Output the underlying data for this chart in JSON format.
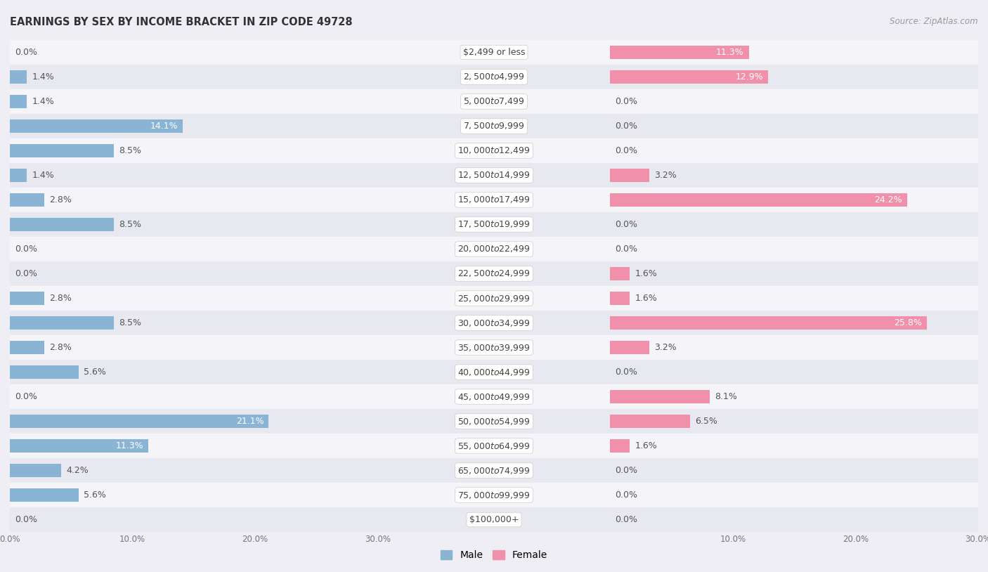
{
  "title": "EARNINGS BY SEX BY INCOME BRACKET IN ZIP CODE 49728",
  "source": "Source: ZipAtlas.com",
  "categories": [
    "$2,499 or less",
    "$2,500 to $4,999",
    "$5,000 to $7,499",
    "$7,500 to $9,999",
    "$10,000 to $12,499",
    "$12,500 to $14,999",
    "$15,000 to $17,499",
    "$17,500 to $19,999",
    "$20,000 to $22,499",
    "$22,500 to $24,999",
    "$25,000 to $29,999",
    "$30,000 to $34,999",
    "$35,000 to $39,999",
    "$40,000 to $44,999",
    "$45,000 to $49,999",
    "$50,000 to $54,999",
    "$55,000 to $64,999",
    "$65,000 to $74,999",
    "$75,000 to $99,999",
    "$100,000+"
  ],
  "male": [
    0.0,
    1.4,
    1.4,
    14.1,
    8.5,
    1.4,
    2.8,
    8.5,
    0.0,
    0.0,
    2.8,
    8.5,
    2.8,
    5.6,
    0.0,
    21.1,
    11.3,
    4.2,
    5.6,
    0.0
  ],
  "female": [
    11.3,
    12.9,
    0.0,
    0.0,
    0.0,
    3.2,
    24.2,
    0.0,
    0.0,
    1.6,
    1.6,
    25.8,
    3.2,
    0.0,
    8.1,
    6.5,
    1.6,
    0.0,
    0.0,
    0.0
  ],
  "male_color": "#8ab4d4",
  "female_color": "#f090aa",
  "male_highlight_color": "#5b9ec9",
  "female_highlight_color": "#e8607a",
  "bg_color": "#eeeef4",
  "row_color_odd": "#f5f5f9",
  "row_color_even": "#e8e8f0",
  "xlim": 30.0,
  "bar_height": 0.52,
  "label_fontsize": 9.0,
  "title_fontsize": 10.5,
  "category_fontsize": 9.0,
  "inside_label_threshold": 10.0
}
